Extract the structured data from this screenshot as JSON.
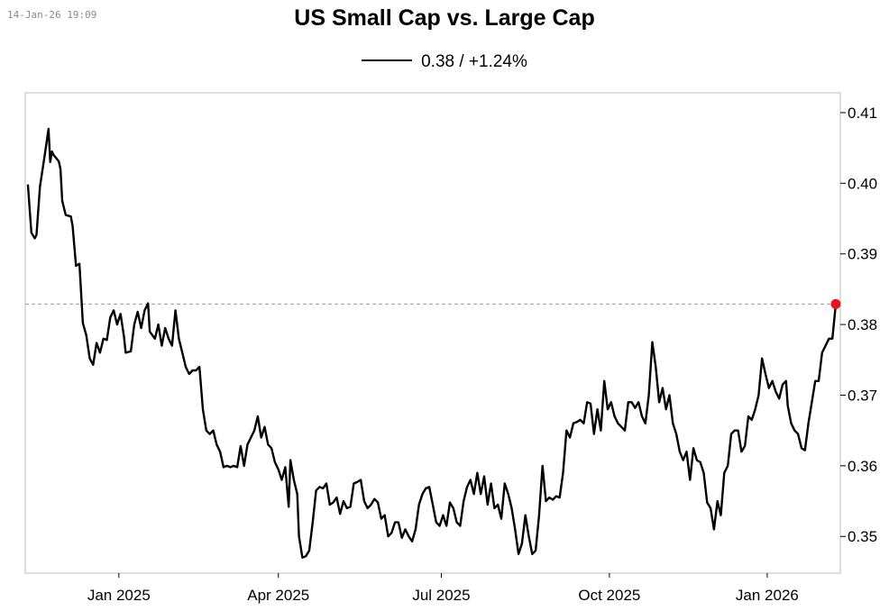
{
  "timestamp": "14-Jan-26 19:09",
  "title": "US Small Cap vs. Large Cap",
  "legend": {
    "label": "0.38 / +1.24%"
  },
  "colors": {
    "line": "#000000",
    "last_point": "#e8141c",
    "reference_line": "#9a9a9a",
    "frame": "#c8c8c8"
  },
  "chart_data": {
    "type": "line",
    "title": "US Small Cap vs. Large Cap",
    "series": [
      {
        "name": "0.38 / +1.24%"
      }
    ],
    "x_range": [
      0,
      451
    ],
    "ylim": [
      0.3448,
      0.4128
    ],
    "y_ticks": [
      0.41,
      0.4,
      0.39,
      0.38,
      0.37,
      0.36,
      0.35
    ],
    "y_tick_labels": [
      "0.41",
      "0.40",
      "0.39",
      "0.38",
      "0.37",
      "0.36",
      "0.35"
    ],
    "x_ticks": [
      {
        "x": 53,
        "label": "Jan 2025"
      },
      {
        "x": 146,
        "label": "Apr 2025"
      },
      {
        "x": 241,
        "label": "Jul 2025"
      },
      {
        "x": 339,
        "label": "Oct 2025"
      },
      {
        "x": 431,
        "label": "Jan 2026"
      }
    ],
    "reference_value": 0.3829,
    "last_value": 0.3829,
    "points": [
      [
        0,
        0.3997
      ],
      [
        2,
        0.393
      ],
      [
        4,
        0.3922
      ],
      [
        5,
        0.3927
      ],
      [
        7,
        0.3995
      ],
      [
        10,
        0.4043
      ],
      [
        12,
        0.4077
      ],
      [
        13,
        0.403
      ],
      [
        14,
        0.4045
      ],
      [
        15,
        0.404
      ],
      [
        18,
        0.4031
      ],
      [
        19,
        0.402
      ],
      [
        20,
        0.3975
      ],
      [
        22,
        0.3955
      ],
      [
        25,
        0.3953
      ],
      [
        26,
        0.394
      ],
      [
        28,
        0.3883
      ],
      [
        30,
        0.3886
      ],
      [
        32,
        0.3802
      ],
      [
        34,
        0.3785
      ],
      [
        36,
        0.3752
      ],
      [
        38,
        0.3743
      ],
      [
        40,
        0.3774
      ],
      [
        42,
        0.376
      ],
      [
        44,
        0.378
      ],
      [
        46,
        0.3778
      ],
      [
        48,
        0.381
      ],
      [
        50,
        0.382
      ],
      [
        52,
        0.38
      ],
      [
        54,
        0.3815
      ],
      [
        56,
        0.3783
      ],
      [
        57,
        0.376
      ],
      [
        60,
        0.3762
      ],
      [
        62,
        0.38
      ],
      [
        64,
        0.3818
      ],
      [
        66,
        0.3795
      ],
      [
        68,
        0.382
      ],
      [
        70,
        0.383
      ],
      [
        71,
        0.379
      ],
      [
        74,
        0.378
      ],
      [
        76,
        0.38
      ],
      [
        78,
        0.377
      ],
      [
        80,
        0.3795
      ],
      [
        82,
        0.378
      ],
      [
        84,
        0.377
      ],
      [
        86,
        0.382
      ],
      [
        88,
        0.378
      ],
      [
        90,
        0.376
      ],
      [
        92,
        0.374
      ],
      [
        94,
        0.373
      ],
      [
        96,
        0.3735
      ],
      [
        98,
        0.3735
      ],
      [
        100,
        0.374
      ],
      [
        101,
        0.371
      ],
      [
        102,
        0.368
      ],
      [
        104,
        0.365
      ],
      [
        106,
        0.3645
      ],
      [
        108,
        0.365
      ],
      [
        110,
        0.363
      ],
      [
        112,
        0.362
      ],
      [
        114,
        0.3598
      ],
      [
        116,
        0.36
      ],
      [
        118,
        0.3598
      ],
      [
        120,
        0.36
      ],
      [
        122,
        0.3598
      ],
      [
        124,
        0.3628
      ],
      [
        126,
        0.36
      ],
      [
        128,
        0.363
      ],
      [
        130,
        0.364
      ],
      [
        132,
        0.365
      ],
      [
        134,
        0.367
      ],
      [
        136,
        0.364
      ],
      [
        138,
        0.3655
      ],
      [
        140,
        0.363
      ],
      [
        142,
        0.3625
      ],
      [
        144,
        0.3605
      ],
      [
        146,
        0.3595
      ],
      [
        148,
        0.358
      ],
      [
        150,
        0.3598
      ],
      [
        151,
        0.357
      ],
      [
        152,
        0.3542
      ],
      [
        153,
        0.3608
      ],
      [
        155,
        0.358
      ],
      [
        157,
        0.356
      ],
      [
        158,
        0.35
      ],
      [
        160,
        0.347
      ],
      [
        162,
        0.3472
      ],
      [
        164,
        0.348
      ],
      [
        166,
        0.352
      ],
      [
        168,
        0.3565
      ],
      [
        170,
        0.357
      ],
      [
        172,
        0.3568
      ],
      [
        174,
        0.3575
      ],
      [
        176,
        0.3545
      ],
      [
        178,
        0.3548
      ],
      [
        180,
        0.3555
      ],
      [
        182,
        0.3532
      ],
      [
        184,
        0.355
      ],
      [
        186,
        0.354
      ],
      [
        188,
        0.3542
      ],
      [
        190,
        0.3575
      ],
      [
        192,
        0.3577
      ],
      [
        194,
        0.358
      ],
      [
        196,
        0.355
      ],
      [
        198,
        0.354
      ],
      [
        200,
        0.3545
      ],
      [
        202,
        0.3553
      ],
      [
        204,
        0.3548
      ],
      [
        206,
        0.3525
      ],
      [
        208,
        0.353
      ],
      [
        210,
        0.35
      ],
      [
        212,
        0.3505
      ],
      [
        214,
        0.352
      ],
      [
        216,
        0.352
      ],
      [
        218,
        0.3498
      ],
      [
        220,
        0.351
      ],
      [
        222,
        0.35
      ],
      [
        224,
        0.3493
      ],
      [
        226,
        0.351
      ],
      [
        228,
        0.3545
      ],
      [
        230,
        0.356
      ],
      [
        232,
        0.3568
      ],
      [
        234,
        0.357
      ],
      [
        236,
        0.3545
      ],
      [
        238,
        0.352
      ],
      [
        240,
        0.3515
      ],
      [
        242,
        0.353
      ],
      [
        244,
        0.3515
      ],
      [
        246,
        0.3548
      ],
      [
        248,
        0.354
      ],
      [
        250,
        0.352
      ],
      [
        252,
        0.3515
      ],
      [
        254,
        0.355
      ],
      [
        256,
        0.357
      ],
      [
        258,
        0.358
      ],
      [
        260,
        0.356
      ],
      [
        262,
        0.359
      ],
      [
        264,
        0.356
      ],
      [
        266,
        0.3585
      ],
      [
        268,
        0.3545
      ],
      [
        270,
        0.3575
      ],
      [
        272,
        0.354
      ],
      [
        274,
        0.3545
      ],
      [
        276,
        0.3525
      ],
      [
        278,
        0.3575
      ],
      [
        280,
        0.356
      ],
      [
        282,
        0.354
      ],
      [
        284,
        0.351
      ],
      [
        286,
        0.3475
      ],
      [
        288,
        0.349
      ],
      [
        290,
        0.353
      ],
      [
        292,
        0.35
      ],
      [
        294,
        0.3475
      ],
      [
        296,
        0.348
      ],
      [
        298,
        0.353
      ],
      [
        300,
        0.36
      ],
      [
        302,
        0.355
      ],
      [
        304,
        0.3555
      ],
      [
        306,
        0.3552
      ],
      [
        308,
        0.3557
      ],
      [
        310,
        0.3555
      ],
      [
        312,
        0.359
      ],
      [
        314,
        0.365
      ],
      [
        316,
        0.364
      ],
      [
        318,
        0.366
      ],
      [
        320,
        0.3662
      ],
      [
        322,
        0.3665
      ],
      [
        324,
        0.366
      ],
      [
        326,
        0.369
      ],
      [
        328,
        0.3688
      ],
      [
        330,
        0.3645
      ],
      [
        332,
        0.368
      ],
      [
        334,
        0.365
      ],
      [
        336,
        0.372
      ],
      [
        338,
        0.368
      ],
      [
        340,
        0.369
      ],
      [
        342,
        0.367
      ],
      [
        344,
        0.366
      ],
      [
        346,
        0.3655
      ],
      [
        348,
        0.365
      ],
      [
        350,
        0.369
      ],
      [
        352,
        0.369
      ],
      [
        354,
        0.3682
      ],
      [
        356,
        0.369
      ],
      [
        358,
        0.367
      ],
      [
        360,
        0.366
      ],
      [
        362,
        0.37
      ],
      [
        364,
        0.3775
      ],
      [
        366,
        0.374
      ],
      [
        368,
        0.369
      ],
      [
        370,
        0.371
      ],
      [
        372,
        0.368
      ],
      [
        374,
        0.37
      ],
      [
        376,
        0.366
      ],
      [
        378,
        0.3645
      ],
      [
        380,
        0.362
      ],
      [
        382,
        0.3608
      ],
      [
        384,
        0.362
      ],
      [
        386,
        0.358
      ],
      [
        388,
        0.3625
      ],
      [
        390,
        0.3608
      ],
      [
        392,
        0.3605
      ],
      [
        394,
        0.359
      ],
      [
        396,
        0.3548
      ],
      [
        398,
        0.354
      ],
      [
        400,
        0.351
      ],
      [
        402,
        0.355
      ],
      [
        404,
        0.353
      ],
      [
        406,
        0.359
      ],
      [
        408,
        0.36
      ],
      [
        410,
        0.3645
      ],
      [
        412,
        0.365
      ],
      [
        414,
        0.365
      ],
      [
        416,
        0.362
      ],
      [
        418,
        0.3628
      ],
      [
        420,
        0.367
      ],
      [
        422,
        0.3665
      ],
      [
        424,
        0.368
      ],
      [
        426,
        0.37
      ],
      [
        428,
        0.3752
      ],
      [
        430,
        0.373
      ],
      [
        432,
        0.371
      ],
      [
        434,
        0.372
      ],
      [
        436,
        0.3705
      ],
      [
        438,
        0.3695
      ],
      [
        440,
        0.3715
      ],
      [
        442,
        0.372
      ],
      [
        443,
        0.3685
      ],
      [
        445,
        0.366
      ],
      [
        447,
        0.365
      ],
      [
        449,
        0.3645
      ],
      [
        451,
        0.3625
      ],
      [
        453,
        0.3622
      ],
      [
        455,
        0.366
      ],
      [
        457,
        0.369
      ],
      [
        459,
        0.372
      ],
      [
        461,
        0.372
      ],
      [
        463,
        0.376
      ],
      [
        465,
        0.377
      ],
      [
        467,
        0.378
      ],
      [
        469,
        0.378
      ],
      [
        471,
        0.3829
      ]
    ]
  }
}
